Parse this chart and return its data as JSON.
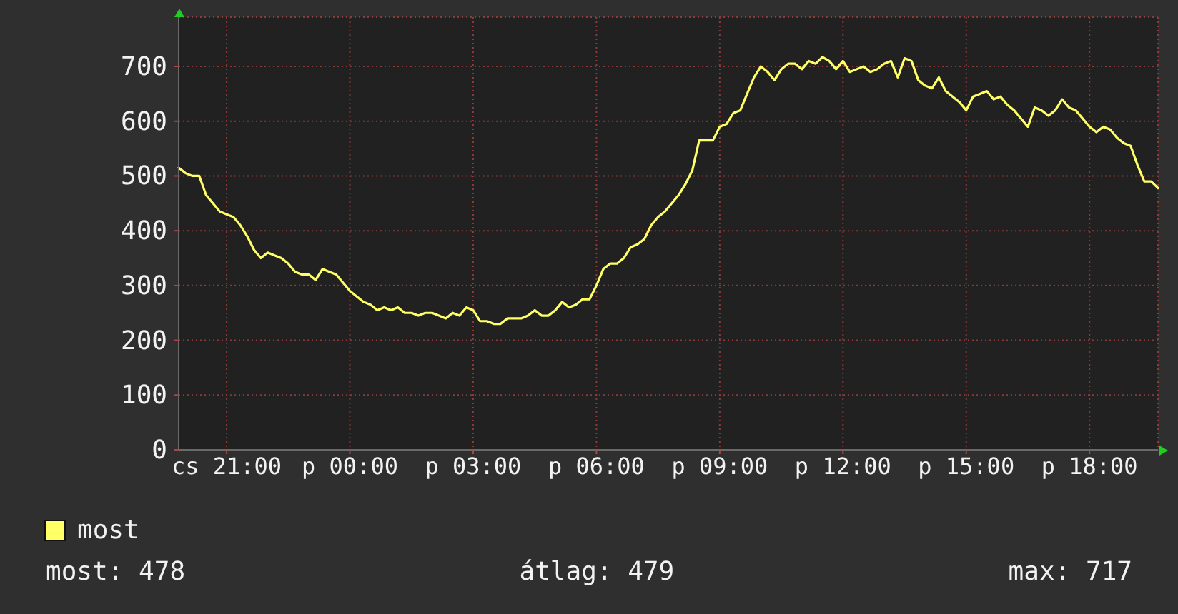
{
  "chart_data": {
    "type": "line",
    "categories": [
      null,
      null,
      null,
      null,
      null,
      null,
      null,
      "cs 21:00",
      null,
      null,
      null,
      null,
      null,
      null,
      null,
      null,
      null,
      null,
      null,
      null,
      null,
      null,
      null,
      null,
      null,
      "p 00:00",
      null,
      null,
      null,
      null,
      null,
      null,
      null,
      null,
      null,
      null,
      null,
      null,
      null,
      null,
      null,
      null,
      null,
      "p 03:00",
      null,
      null,
      null,
      null,
      null,
      null,
      null,
      null,
      null,
      null,
      null,
      null,
      null,
      null,
      null,
      null,
      null,
      "p 06:00",
      null,
      null,
      null,
      null,
      null,
      null,
      null,
      null,
      null,
      null,
      null,
      null,
      null,
      null,
      null,
      null,
      null,
      "p 09:00",
      null,
      null,
      null,
      null,
      null,
      null,
      null,
      null,
      null,
      null,
      null,
      null,
      null,
      null,
      null,
      null,
      null,
      "p 12:00",
      null,
      null,
      null,
      null,
      null,
      null,
      null,
      null,
      null,
      null,
      null,
      null,
      null,
      null,
      null,
      null,
      null,
      "p 15:00",
      null,
      null,
      null,
      null,
      null,
      null,
      null,
      null,
      null,
      null,
      null,
      null,
      null,
      null,
      null,
      null,
      null,
      "p 18:00",
      null,
      null,
      null,
      null,
      null,
      null,
      null,
      null,
      null,
      null
    ],
    "series": [
      {
        "name": "most",
        "color": "#ffff66",
        "values": [
          515,
          505,
          500,
          500,
          465,
          450,
          435,
          430,
          425,
          410,
          390,
          365,
          350,
          360,
          355,
          350,
          340,
          325,
          320,
          320,
          310,
          330,
          325,
          320,
          305,
          290,
          280,
          270,
          265,
          255,
          260,
          255,
          260,
          250,
          250,
          245,
          250,
          250,
          245,
          240,
          250,
          245,
          260,
          255,
          235,
          235,
          230,
          230,
          240,
          240,
          240,
          245,
          255,
          245,
          245,
          255,
          270,
          260,
          265,
          275,
          275,
          300,
          330,
          340,
          340,
          350,
          370,
          375,
          385,
          410,
          425,
          435,
          450,
          465,
          485,
          510,
          565,
          565,
          565,
          590,
          595,
          615,
          620,
          650,
          680,
          700,
          690,
          675,
          695,
          705,
          705,
          695,
          710,
          705,
          717,
          710,
          695,
          710,
          690,
          695,
          700,
          690,
          695,
          705,
          710,
          680,
          715,
          710,
          675,
          665,
          660,
          680,
          655,
          645,
          635,
          620,
          645,
          650,
          655,
          640,
          645,
          630,
          620,
          605,
          590,
          625,
          620,
          610,
          620,
          640,
          625,
          620,
          605,
          590,
          580,
          590,
          585,
          570,
          560,
          555,
          520,
          490,
          490,
          478
        ]
      }
    ],
    "ylim": [
      0,
      790
    ],
    "yticks": [
      0,
      100,
      200,
      300,
      400,
      500,
      600,
      700
    ],
    "grid": true,
    "legend": "bottom left",
    "annotations": [
      "most: 478",
      "átlag: 479",
      "max: 717"
    ]
  }
}
